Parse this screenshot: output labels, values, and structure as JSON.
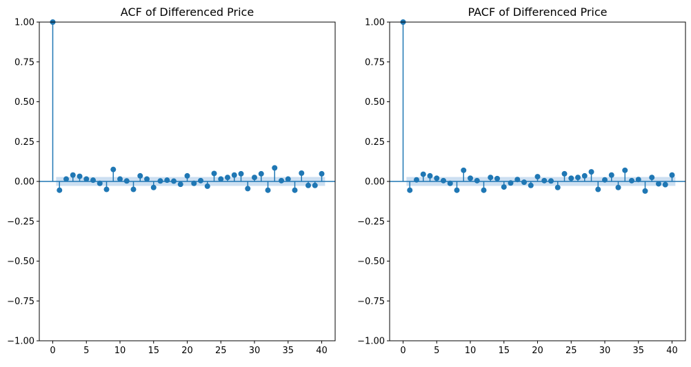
{
  "chart_data": [
    {
      "type": "stem",
      "title": "ACF of Differenced Price",
      "xlabel": "",
      "ylabel": "",
      "xlim": [
        -2,
        42
      ],
      "ylim": [
        -1.0,
        1.0
      ],
      "x_ticks": [
        0,
        5,
        10,
        15,
        20,
        25,
        30,
        35,
        40
      ],
      "x_tick_labels": [
        "0",
        "5",
        "10",
        "15",
        "20",
        "25",
        "30",
        "35",
        "40"
      ],
      "y_ticks": [
        -1.0,
        -0.75,
        -0.5,
        -0.25,
        0.0,
        0.25,
        0.5,
        0.75,
        1.0
      ],
      "y_tick_labels": [
        "−1.00",
        "−0.75",
        "−0.50",
        "−0.25",
        "0.00",
        "0.25",
        "0.50",
        "0.75",
        "1.00"
      ],
      "confidence_band": 0.028,
      "colors": {
        "stem": "#1f77b4",
        "band": "#c6dbef"
      },
      "lags": [
        0,
        1,
        2,
        3,
        4,
        5,
        6,
        7,
        8,
        9,
        10,
        11,
        12,
        13,
        14,
        15,
        16,
        17,
        18,
        19,
        20,
        21,
        22,
        23,
        24,
        25,
        26,
        27,
        28,
        29,
        30,
        31,
        32,
        33,
        34,
        35,
        36,
        37,
        38,
        39,
        40
      ],
      "values": [
        1.0,
        -0.055,
        0.015,
        0.04,
        0.032,
        0.015,
        0.008,
        -0.012,
        -0.05,
        0.075,
        0.015,
        0.003,
        -0.05,
        0.035,
        0.015,
        -0.038,
        0.003,
        0.008,
        0.002,
        -0.018,
        0.035,
        -0.012,
        0.005,
        -0.03,
        0.05,
        0.015,
        0.025,
        0.04,
        0.048,
        -0.045,
        0.025,
        0.048,
        -0.055,
        0.085,
        0.005,
        0.015,
        -0.055,
        0.052,
        -0.025,
        -0.025,
        0.048
      ]
    },
    {
      "type": "stem",
      "title": "PACF of Differenced Price",
      "xlabel": "",
      "ylabel": "",
      "xlim": [
        -2,
        42
      ],
      "ylim": [
        -1.0,
        1.0
      ],
      "x_ticks": [
        0,
        5,
        10,
        15,
        20,
        25,
        30,
        35,
        40
      ],
      "x_tick_labels": [
        "0",
        "5",
        "10",
        "15",
        "20",
        "25",
        "30",
        "35",
        "40"
      ],
      "y_ticks": [
        -1.0,
        -0.75,
        -0.5,
        -0.25,
        0.0,
        0.25,
        0.5,
        0.75,
        1.0
      ],
      "y_tick_labels": [
        "−1.00",
        "−0.75",
        "−0.50",
        "−0.25",
        "0.00",
        "0.25",
        "0.50",
        "0.75",
        "1.00"
      ],
      "confidence_band": 0.028,
      "colors": {
        "stem": "#1f77b4",
        "band": "#c6dbef"
      },
      "lags": [
        0,
        1,
        2,
        3,
        4,
        5,
        6,
        7,
        8,
        9,
        10,
        11,
        12,
        13,
        14,
        15,
        16,
        17,
        18,
        19,
        20,
        21,
        22,
        23,
        24,
        25,
        26,
        27,
        28,
        29,
        30,
        31,
        32,
        33,
        34,
        35,
        36,
        37,
        38,
        39,
        40
      ],
      "values": [
        1.0,
        -0.055,
        0.01,
        0.045,
        0.035,
        0.02,
        0.005,
        -0.012,
        -0.055,
        0.07,
        0.02,
        0.005,
        -0.055,
        0.025,
        0.018,
        -0.035,
        -0.01,
        0.012,
        -0.005,
        -0.025,
        0.03,
        0.005,
        0.003,
        -0.038,
        0.048,
        0.02,
        0.025,
        0.035,
        0.06,
        -0.05,
        0.01,
        0.04,
        -0.038,
        0.07,
        0.005,
        0.012,
        -0.06,
        0.025,
        -0.015,
        -0.02,
        0.04
      ]
    }
  ]
}
